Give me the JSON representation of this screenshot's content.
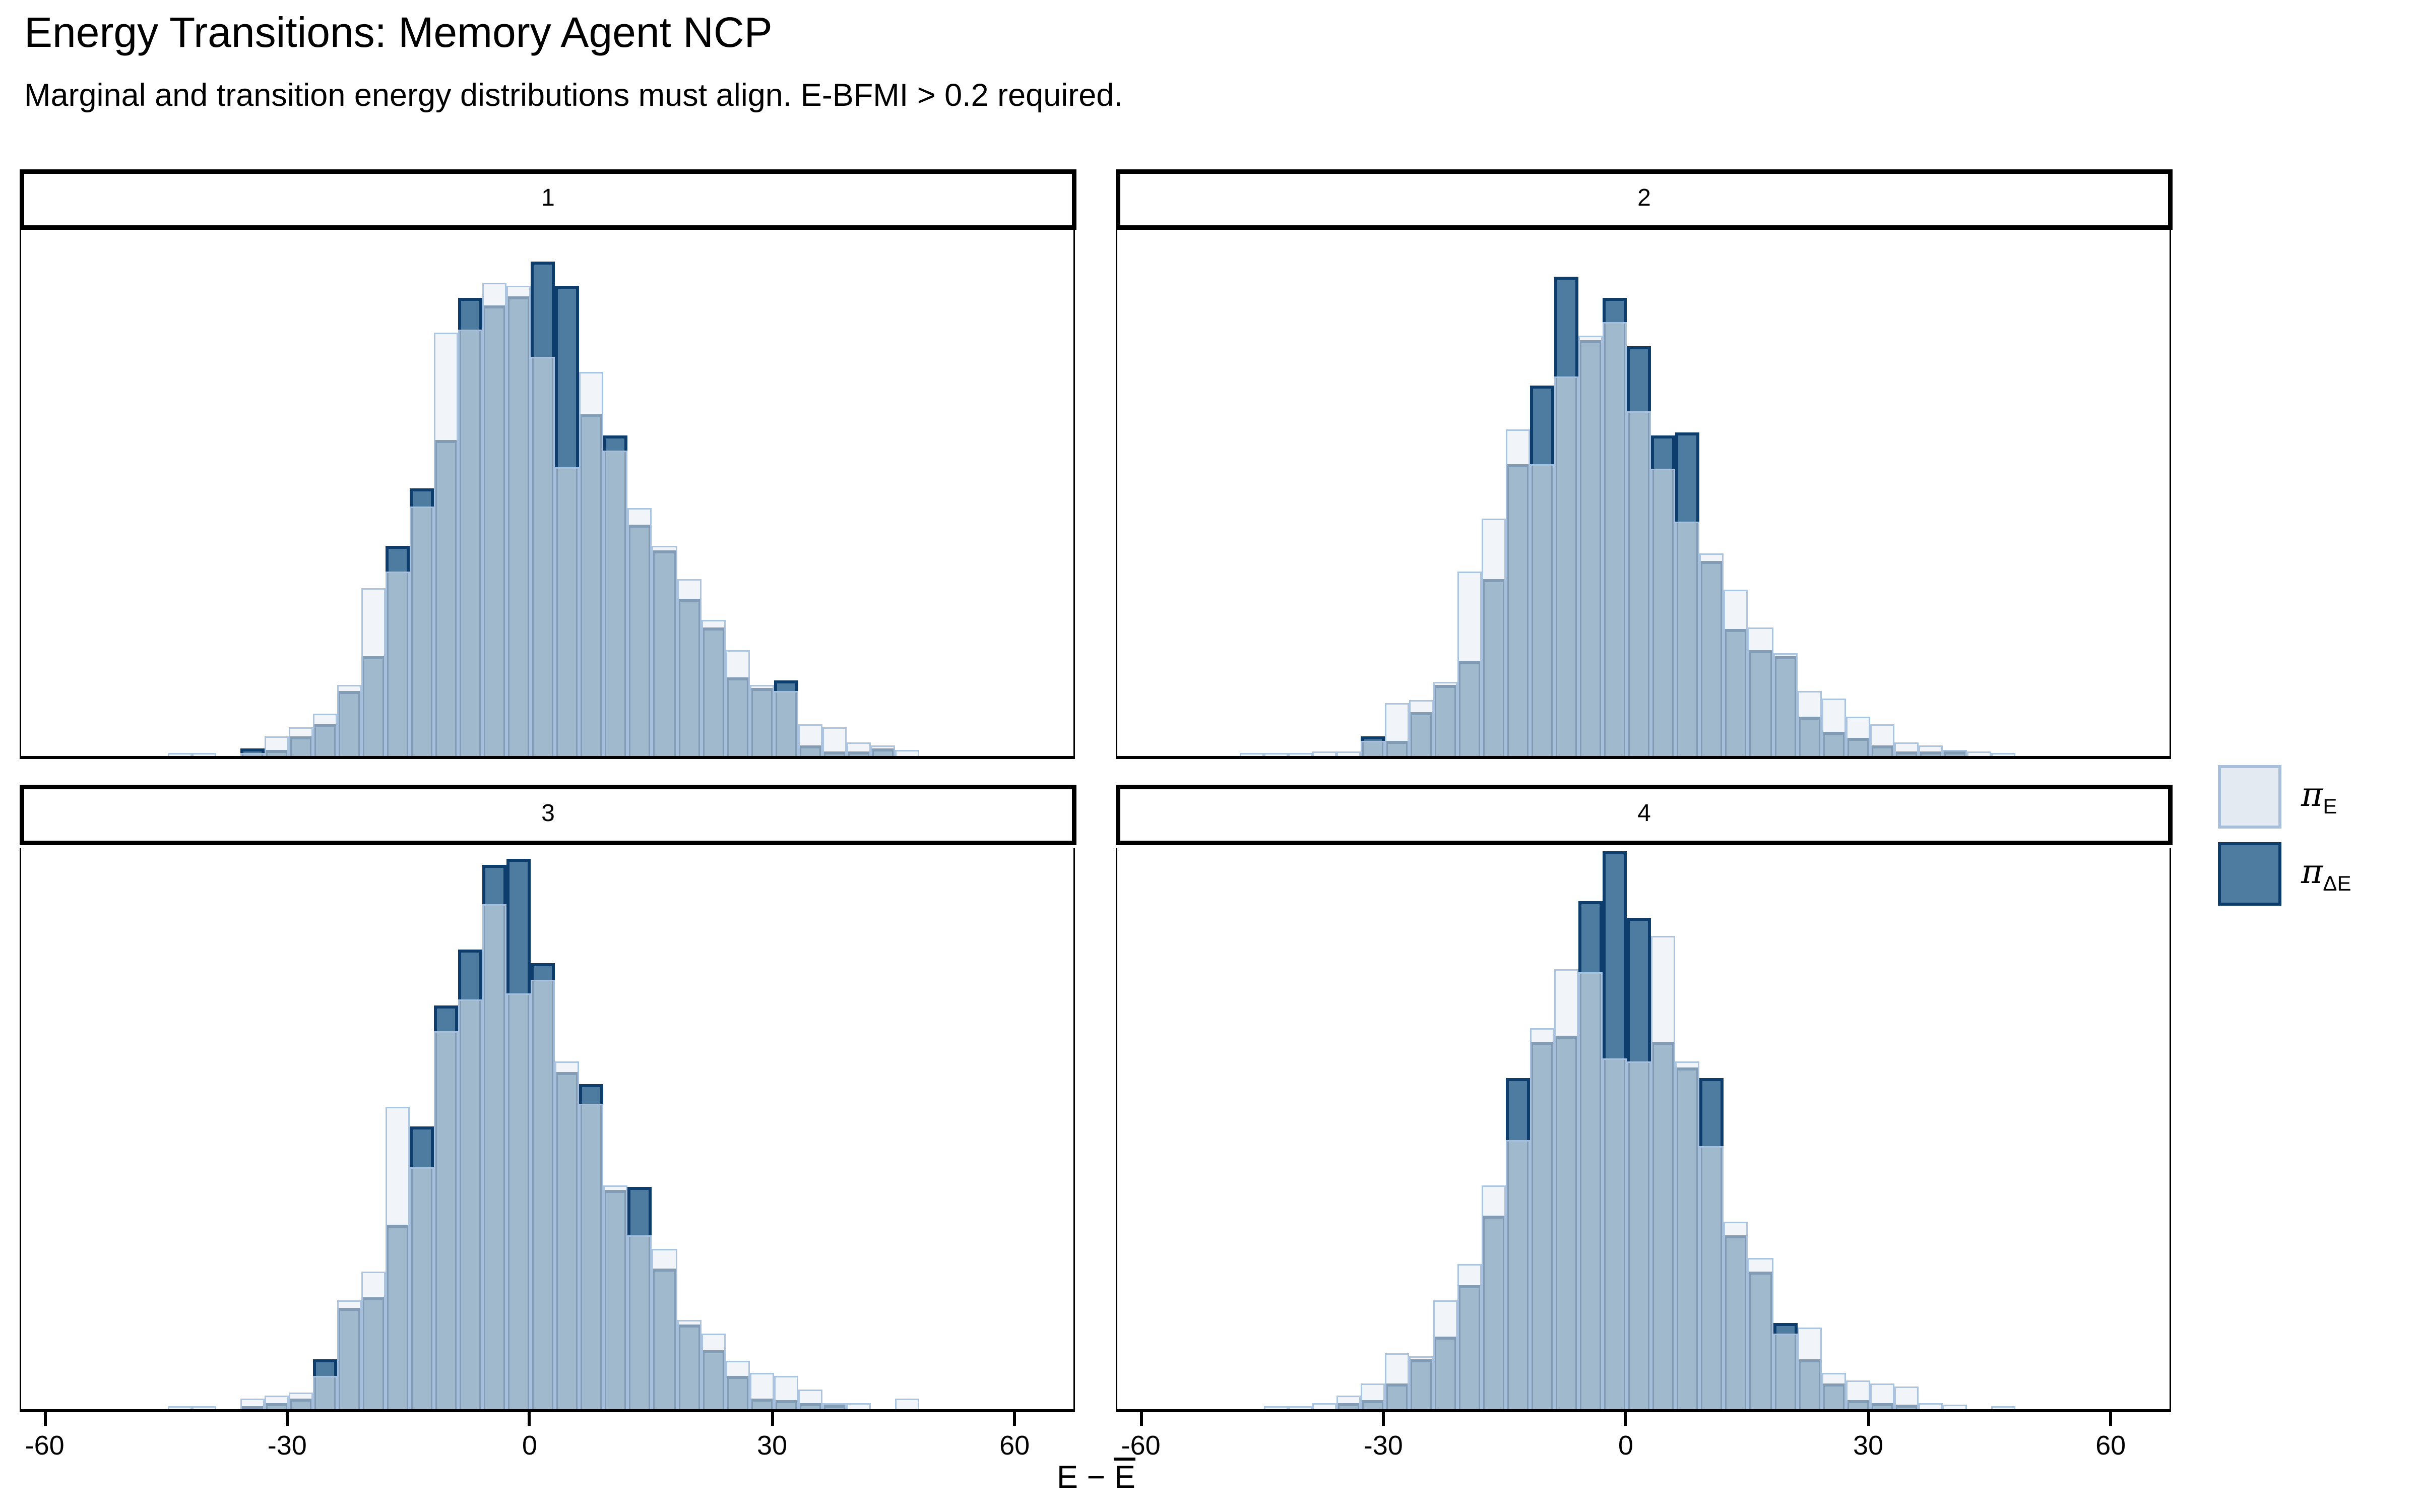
{
  "header": {
    "title": "Energy Transitions: Memory Agent NCP",
    "subtitle": "Marginal and transition energy distributions must align. E-BFMI > 0.2 required."
  },
  "legend": {
    "items": [
      {
        "id": "pi-E",
        "symbol": "π",
        "sub": "E",
        "fill": "#E4EAF2",
        "border": "#A7BFDA"
      },
      {
        "id": "pi-delta-E",
        "symbol": "π",
        "sub": "ΔE",
        "fill": "#4E7CA1",
        "border": "#0C3D6C"
      }
    ]
  },
  "axis": {
    "xlabel_prefix": "E − ",
    "xlabel_bar": "E",
    "x_ticks": [
      -60,
      -30,
      0,
      30,
      60
    ]
  },
  "chart_data": {
    "type": "bar",
    "subtype": "overlaid-histograms-faceted",
    "title": "Energy Transitions: Memory Agent NCP",
    "xlabel": "E − E̅",
    "ylabel": "",
    "x_range": [
      -63,
      67
    ],
    "x_tick_values": [
      -60,
      -30,
      0,
      30,
      60
    ],
    "bin_width": 3,
    "grid": "off",
    "legend_position": "right-center",
    "series_names": [
      "π_E (marginal energy)",
      "π_ΔE (energy transition)"
    ],
    "colors": {
      "pi_E_fill": "#E4EAF2",
      "pi_E_border": "#A7BFDA",
      "pi_dE_fill": "#4E7CA1",
      "pi_dE_border": "#0C3D6C",
      "overlap": "#9BB5CB"
    },
    "y_note": "bar heights are fractions of panel height; counts axis unlabeled in source",
    "facets": [
      {
        "label": "1",
        "bins": [
          [
            -45,
            0.004,
            0
          ],
          [
            -42,
            0.004,
            0
          ],
          [
            -36,
            0.006,
            0.014
          ],
          [
            -33,
            0.038,
            0.012
          ],
          [
            -30,
            0.056,
            0.036
          ],
          [
            -27,
            0.08,
            0.06
          ],
          [
            -24,
            0.135,
            0.125
          ],
          [
            -21,
            0.32,
            0.19
          ],
          [
            -18,
            0.35,
            0.4
          ],
          [
            -15,
            0.475,
            0.51
          ],
          [
            -12,
            0.805,
            0.6
          ],
          [
            -9,
            0.81,
            0.87
          ],
          [
            -6,
            0.9,
            0.855
          ],
          [
            -3,
            0.895,
            0.875
          ],
          [
            0,
            0.76,
            0.94
          ],
          [
            3,
            0.55,
            0.895
          ],
          [
            6,
            0.73,
            0.65
          ],
          [
            9,
            0.58,
            0.61
          ],
          [
            12,
            0.47,
            0.44
          ],
          [
            15,
            0.4,
            0.39
          ],
          [
            18,
            0.335,
            0.3
          ],
          [
            21,
            0.26,
            0.245
          ],
          [
            24,
            0.2,
            0.15
          ],
          [
            27,
            0.135,
            0.13
          ],
          [
            30,
            0.125,
            0.145
          ],
          [
            33,
            0.06,
            0.02
          ],
          [
            36,
            0.055,
            0.01
          ],
          [
            39,
            0.025,
            0.008
          ],
          [
            42,
            0.02,
            0.015
          ],
          [
            45,
            0.012,
            0
          ]
        ]
      },
      {
        "label": "2",
        "bins": [
          [
            -48,
            0.004,
            0
          ],
          [
            -45,
            0.004,
            0
          ],
          [
            -42,
            0.006,
            0
          ],
          [
            -39,
            0.008,
            0
          ],
          [
            -36,
            0.008,
            0
          ],
          [
            -33,
            0.028,
            0.038
          ],
          [
            -30,
            0.1,
            0.03
          ],
          [
            -27,
            0.105,
            0.082
          ],
          [
            -24,
            0.14,
            0.135
          ],
          [
            -21,
            0.35,
            0.18
          ],
          [
            -18,
            0.45,
            0.335
          ],
          [
            -15,
            0.62,
            0.555
          ],
          [
            -12,
            0.555,
            0.705
          ],
          [
            -9,
            0.72,
            0.91
          ],
          [
            -6,
            0.8,
            0.79
          ],
          [
            -3,
            0.825,
            0.87
          ],
          [
            0,
            0.655,
            0.78
          ],
          [
            3,
            0.545,
            0.61
          ],
          [
            6,
            0.445,
            0.615
          ],
          [
            9,
            0.385,
            0.37
          ],
          [
            12,
            0.315,
            0.24
          ],
          [
            15,
            0.245,
            0.2
          ],
          [
            18,
            0.195,
            0.19
          ],
          [
            21,
            0.125,
            0.075
          ],
          [
            24,
            0.11,
            0.045
          ],
          [
            27,
            0.075,
            0.035
          ],
          [
            30,
            0.06,
            0.02
          ],
          [
            33,
            0.025,
            0.01
          ],
          [
            36,
            0.02,
            0.008
          ],
          [
            39,
            0.012,
            0.008
          ],
          [
            42,
            0.008,
            0
          ],
          [
            45,
            0.006,
            0
          ]
        ]
      },
      {
        "label": "3",
        "bins": [
          [
            -45,
            0.006,
            0
          ],
          [
            -42,
            0.006,
            0
          ],
          [
            -36,
            0.02,
            0.005
          ],
          [
            -33,
            0.025,
            0.01
          ],
          [
            -30,
            0.03,
            0.02
          ],
          [
            -27,
            0.06,
            0.09
          ],
          [
            -24,
            0.195,
            0.18
          ],
          [
            -21,
            0.245,
            0.2
          ],
          [
            -18,
            0.54,
            0.33
          ],
          [
            -15,
            0.43,
            0.505
          ],
          [
            -12,
            0.675,
            0.72
          ],
          [
            -9,
            0.73,
            0.82
          ],
          [
            -6,
            0.9,
            0.97
          ],
          [
            -3,
            0.74,
            0.98
          ],
          [
            0,
            0.765,
            0.795
          ],
          [
            3,
            0.62,
            0.6
          ],
          [
            6,
            0.545,
            0.58
          ],
          [
            9,
            0.4,
            0.39
          ],
          [
            12,
            0.31,
            0.395
          ],
          [
            15,
            0.285,
            0.25
          ],
          [
            18,
            0.16,
            0.15
          ],
          [
            21,
            0.135,
            0.105
          ],
          [
            24,
            0.085,
            0.06
          ],
          [
            27,
            0.065,
            0.02
          ],
          [
            30,
            0.06,
            0.015
          ],
          [
            33,
            0.035,
            0.01
          ],
          [
            36,
            0.012,
            0.008
          ],
          [
            39,
            0.01,
            0
          ],
          [
            45,
            0.02,
            0
          ]
        ]
      },
      {
        "label": "4",
        "bins": [
          [
            -45,
            0.004,
            0
          ],
          [
            -42,
            0.004,
            0
          ],
          [
            -39,
            0.01,
            0
          ],
          [
            -36,
            0.025,
            0.01
          ],
          [
            -33,
            0.045,
            0.015
          ],
          [
            -30,
            0.1,
            0.045
          ],
          [
            -27,
            0.095,
            0.09
          ],
          [
            -24,
            0.195,
            0.13
          ],
          [
            -21,
            0.26,
            0.22
          ],
          [
            -18,
            0.4,
            0.345
          ],
          [
            -15,
            0.48,
            0.59
          ],
          [
            -12,
            0.68,
            0.655
          ],
          [
            -9,
            0.785,
            0.665
          ],
          [
            -6,
            0.78,
            0.905
          ],
          [
            -3,
            0.625,
            0.995
          ],
          [
            0,
            0.62,
            0.875
          ],
          [
            3,
            0.845,
            0.655
          ],
          [
            6,
            0.62,
            0.61
          ],
          [
            9,
            0.47,
            0.59
          ],
          [
            12,
            0.335,
            0.31
          ],
          [
            15,
            0.27,
            0.245
          ],
          [
            18,
            0.135,
            0.155
          ],
          [
            21,
            0.145,
            0.09
          ],
          [
            24,
            0.065,
            0.045
          ],
          [
            27,
            0.05,
            0.015
          ],
          [
            30,
            0.045,
            0.01
          ],
          [
            33,
            0.04,
            0.008
          ],
          [
            36,
            0.012,
            0
          ],
          [
            39,
            0.008,
            0
          ],
          [
            45,
            0.005,
            0
          ]
        ]
      }
    ]
  }
}
